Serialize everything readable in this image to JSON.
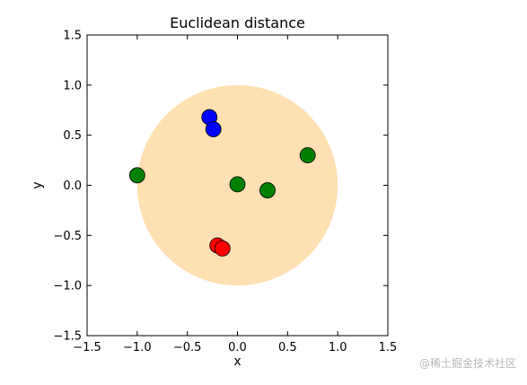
{
  "chart_data": {
    "type": "scatter",
    "title": "Euclidean distance",
    "xlabel": "x",
    "ylabel": "y",
    "xlim": [
      -1.5,
      1.5
    ],
    "ylim": [
      -1.5,
      1.5
    ],
    "xticks": [
      -1.5,
      -1.0,
      -0.5,
      0.0,
      0.5,
      1.0,
      1.5
    ],
    "yticks": [
      -1.5,
      -1.0,
      -0.5,
      0.0,
      0.5,
      1.0,
      1.5
    ],
    "xtick_labels": [
      "−1.5",
      "−1.0",
      "−0.5",
      "0.0",
      "0.5",
      "1.0",
      "1.5"
    ],
    "ytick_labels": [
      "−1.5",
      "−1.0",
      "−0.5",
      "0.0",
      "0.5",
      "1.0",
      "1.5"
    ],
    "grid": false,
    "circle": {
      "center": [
        0,
        0
      ],
      "radius": 1.0,
      "color": "#ffe0b2"
    },
    "series": [
      {
        "color": "#0000ff",
        "points": [
          [
            -0.28,
            0.68
          ],
          [
            -0.24,
            0.56
          ]
        ]
      },
      {
        "color": "#008000",
        "points": [
          [
            -1.0,
            0.1
          ],
          [
            0.0,
            0.01
          ],
          [
            0.3,
            -0.05
          ],
          [
            0.7,
            0.3
          ]
        ]
      },
      {
        "color": "#ff0000",
        "points": [
          [
            -0.2,
            -0.6
          ],
          [
            -0.15,
            -0.63
          ]
        ]
      }
    ]
  },
  "watermark": "@稀土掘金技术社区"
}
